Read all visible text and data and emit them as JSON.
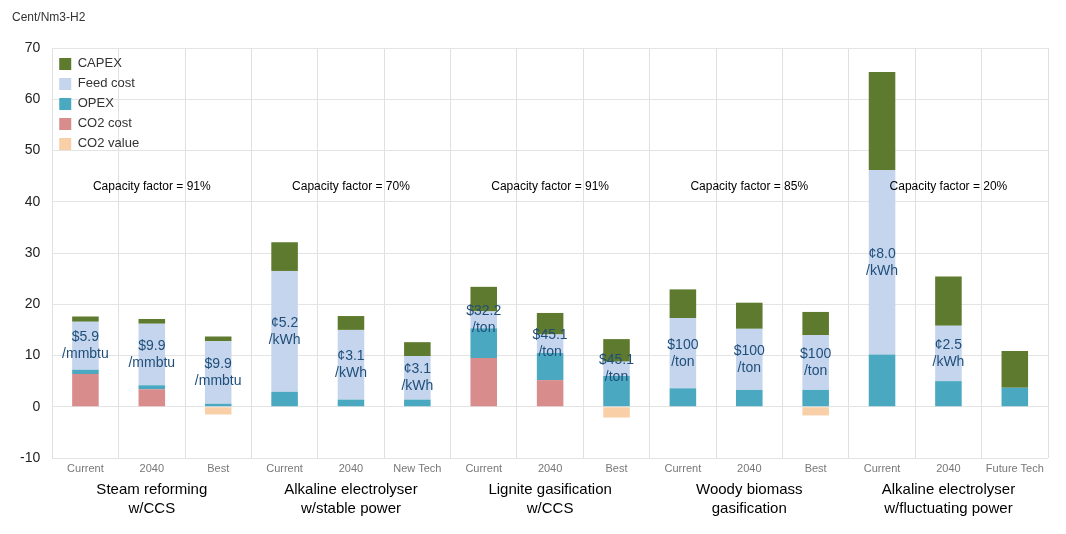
{
  "chart_data": {
    "type": "bar",
    "stacked": true,
    "ylabel": "Cent/Nm3-H2",
    "categories": [
      "Current",
      "2040",
      "Best",
      "Current",
      "2040",
      "New Tech",
      "Current",
      "2040",
      "Best",
      "Current",
      "2040",
      "Best",
      "Current",
      "2040",
      "Future Tech"
    ],
    "series": [
      {
        "name": "CO2 value",
        "color": "#f9cfa8",
        "values": [
          0,
          0,
          -1.5,
          0,
          0,
          0,
          0,
          0,
          -2.1,
          0,
          0,
          -1.7,
          0,
          0,
          0
        ]
      },
      {
        "name": "CO2 cost",
        "color": "#d98c8c",
        "values": [
          6.4,
          3.4,
          0,
          0,
          0,
          0,
          9.5,
          5.2,
          0,
          0,
          0,
          0,
          0,
          0,
          0
        ]
      },
      {
        "name": "OPEX",
        "color": "#4aa8c0",
        "values": [
          0.8,
          0.8,
          0.6,
          2.9,
          1.4,
          1.4,
          5.8,
          5.3,
          6.0,
          3.6,
          3.3,
          3.3,
          10.2,
          5.0,
          3.7
        ]
      },
      {
        "name": "Feed cost",
        "color": "#c5d5ee",
        "values": [
          9.4,
          12.0,
          12.2,
          23.6,
          13.6,
          8.5,
          3.3,
          3.6,
          2.8,
          13.7,
          11.9,
          10.7,
          36.0,
          10.8,
          0
        ]
      },
      {
        "name": "CAPEX",
        "color": "#5e7a2e",
        "values": [
          1.0,
          0.9,
          0.9,
          5.6,
          2.7,
          2.7,
          4.8,
          4.2,
          4.4,
          5.6,
          5.1,
          4.5,
          19.1,
          9.6,
          7.2
        ]
      }
    ],
    "ylim": [
      -10,
      70
    ],
    "yticks": [
      -10,
      0,
      10,
      20,
      30,
      40,
      50,
      60,
      70
    ],
    "grid": true,
    "legend": "top left",
    "annotations": [
      "Capacity factor = 91%",
      "Capacity factor = 70%",
      "Capacity factor = 91%",
      "Capacity factor = 85%",
      "Capacity factor = 20%",
      "Steam reforming\nw/CCS",
      "Alkaline electrolyser\nw/stable power",
      "Lignite gasification\nw/CCS",
      "Woody biomass\ngasification",
      "Alkaline electrolyser\nw/fluctuating power",
      "$5.9\n/mmbtu",
      "$9.9\n/mmbtu",
      "$9.9\n/mmbtu",
      "¢5.2\n/kWh",
      "¢3.1\n/kWh",
      "¢3.1\n/kWh",
      "$32.2\n/ton",
      "$45.1\n/ton",
      "$45.1\n/ton",
      "$100\n/ton",
      "$100\n/ton",
      "$100\n/ton",
      "¢8.0\n/kWh",
      "¢2.5\n/kWh"
    ]
  }
}
